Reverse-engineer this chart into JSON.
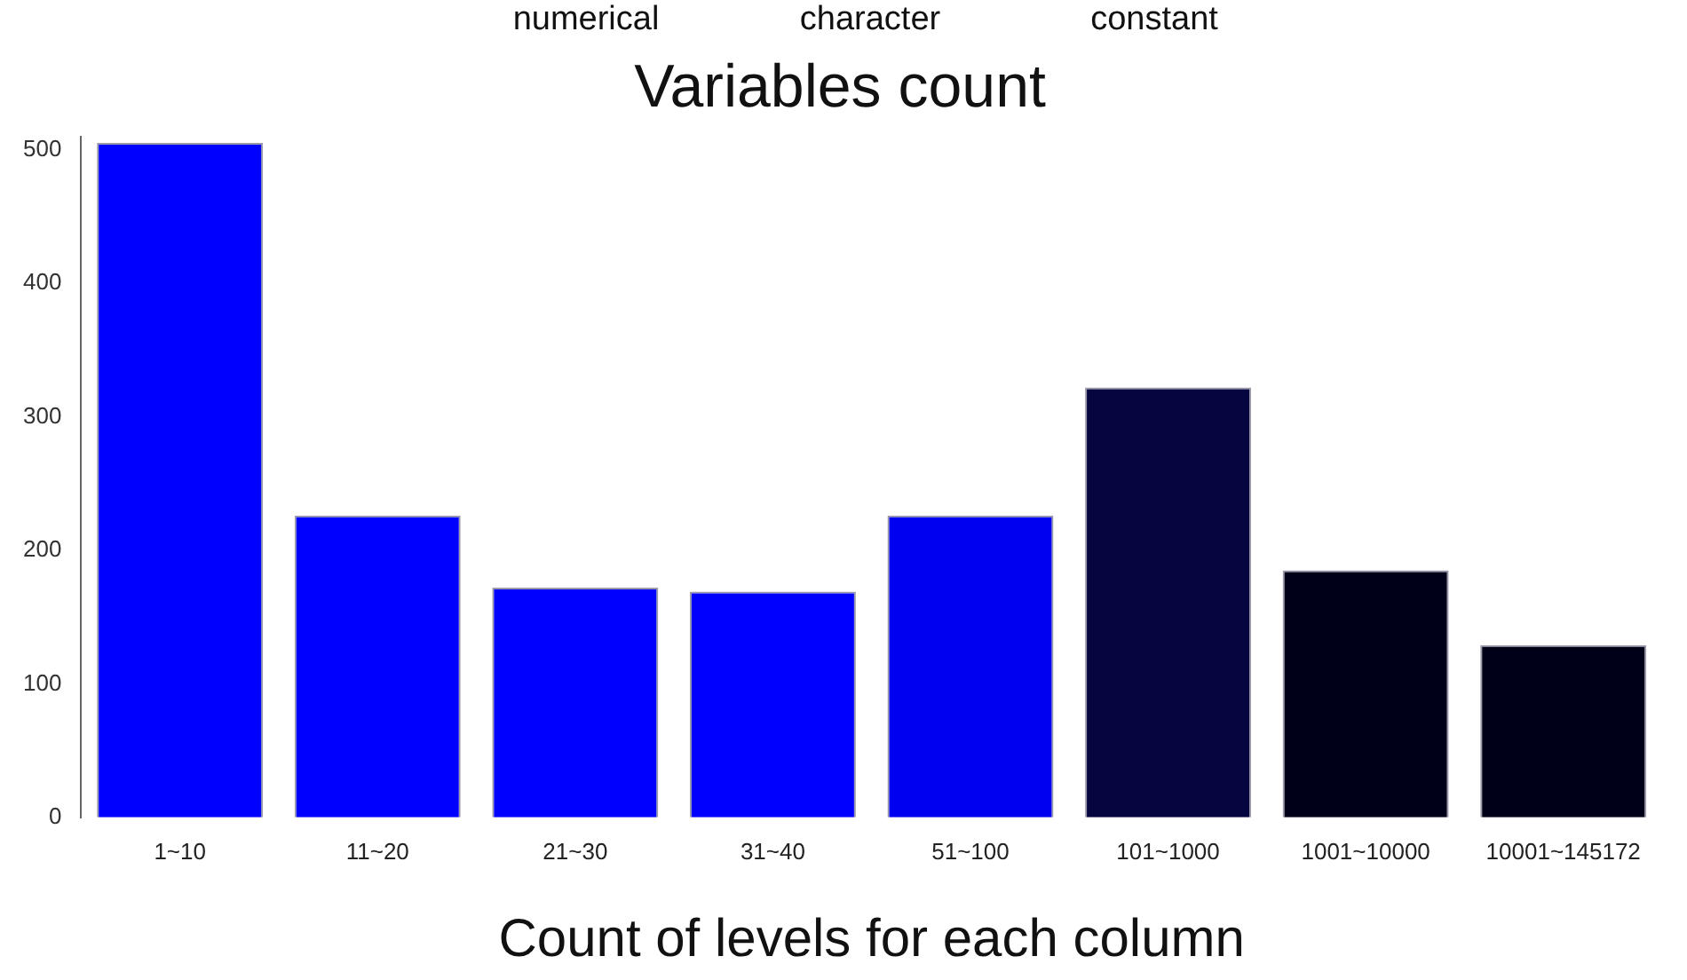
{
  "chart_data": {
    "type": "bar",
    "title": "Variables count",
    "xlabel": "Count of levels for each column",
    "annotations": [
      "numerical",
      "character",
      "constant"
    ],
    "categories": [
      "1~10",
      "11~20",
      "21~30",
      "31~40",
      "51~100",
      "101~1000",
      "1001~10000",
      "10001~145172"
    ],
    "values": [
      505,
      226,
      172,
      169,
      226,
      322,
      185,
      129
    ],
    "colors": [
      "#0000ff",
      "#0000ff",
      "#0000ff",
      "#0000ff",
      "#0000f0",
      "#050540",
      "#000018",
      "#000018"
    ],
    "ylim": [
      0,
      510
    ],
    "yticks": [
      0,
      100,
      200,
      300,
      400,
      500
    ],
    "grid": false,
    "legend": false
  }
}
